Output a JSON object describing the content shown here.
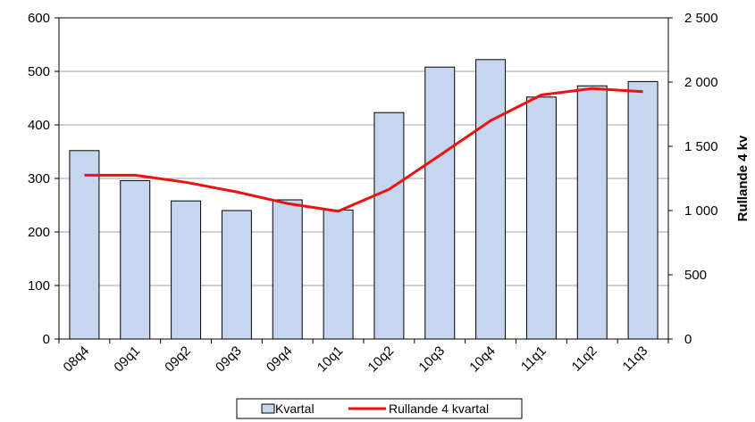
{
  "chart_data": {
    "type": "bar",
    "categories": [
      "08q4",
      "09q1",
      "09q2",
      "09q3",
      "09q4",
      "10q1",
      "10q2",
      "10q3",
      "10q4",
      "11q1",
      "11q2",
      "11q3"
    ],
    "series": [
      {
        "name": "Kvartal",
        "type": "bar",
        "axis": "left",
        "color": "#c5d6ee",
        "values": [
          352,
          296,
          258,
          240,
          260,
          241,
          423,
          508,
          522,
          452,
          473,
          481
        ]
      },
      {
        "name": "Rullande 4 kvartal",
        "type": "line",
        "axis": "right",
        "color": "#ee1111",
        "values": [
          1275,
          1275,
          1220,
          1145,
          1055,
          995,
          1165,
          1430,
          1700,
          1900,
          1950,
          1925
        ]
      }
    ],
    "y_left": {
      "range": [
        0,
        600
      ],
      "ticks": [
        "0",
        "100",
        "200",
        "300",
        "400",
        "500",
        "600"
      ],
      "label": ""
    },
    "y_right": {
      "range": [
        0,
        2500
      ],
      "ticks": [
        "0",
        "500",
        "1 000",
        "1 500",
        "2 000",
        "2 500"
      ],
      "label": "Rullande 4 kv"
    },
    "grid": true,
    "legend_position": "bottom"
  }
}
